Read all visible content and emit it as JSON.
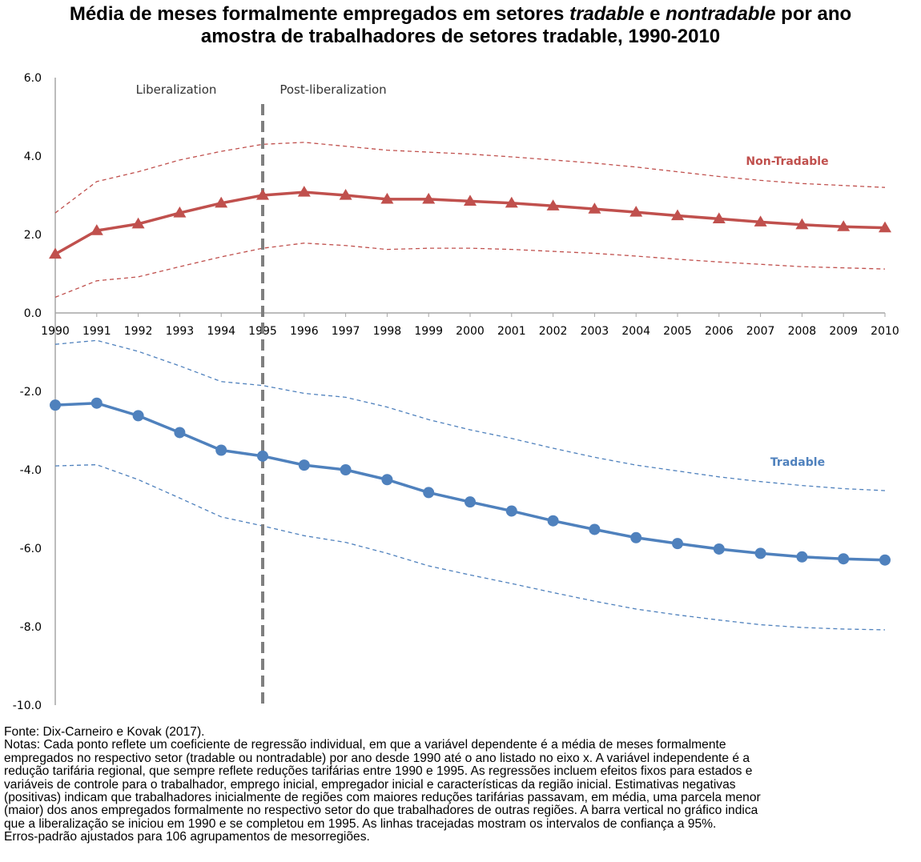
{
  "title": {
    "line1_a": "Média de meses formalmente empregados em setores ",
    "line1_b": "tradable",
    "line1_c": " e ",
    "line1_d": "nontradable",
    "line1_e": " por ano",
    "line2": "amostra de trabalhadores de setores tradable, 1990-2010"
  },
  "chart_data": {
    "type": "line",
    "title": "Média de meses formalmente empregados em setores tradable e nontradable por ano amostra de trabalhadores de setores tradable, 1990-2010",
    "x": [
      1990,
      1991,
      1992,
      1993,
      1994,
      1995,
      1996,
      1997,
      1998,
      1999,
      2000,
      2001,
      2002,
      2003,
      2004,
      2005,
      2006,
      2007,
      2008,
      2009,
      2010
    ],
    "ylim": [
      -10,
      6
    ],
    "yticks": [
      6,
      4,
      2,
      0,
      -2,
      -4,
      -6,
      -8,
      -10
    ],
    "ytick_labels": [
      "6.0",
      "4.0",
      "2.0",
      "0.0",
      "-2.0",
      "-4.0",
      "-6.0",
      "-8.0",
      "-10.0"
    ],
    "xtick_labels": [
      "1990",
      "1991",
      "1992",
      "1993",
      "1994",
      "1995",
      "1996",
      "1997",
      "1998",
      "1999",
      "2000",
      "2001",
      "2002",
      "2003",
      "2004",
      "2005",
      "2006",
      "2007",
      "2008",
      "2009",
      "2010"
    ],
    "grid": false,
    "series": [
      {
        "name": "Non-Tradable",
        "color": "#c0504d",
        "marker": "triangle",
        "values": [
          1.5,
          2.1,
          2.27,
          2.55,
          2.8,
          3.0,
          3.08,
          3.0,
          2.9,
          2.9,
          2.85,
          2.8,
          2.73,
          2.65,
          2.57,
          2.48,
          2.4,
          2.32,
          2.25,
          2.2,
          2.17
        ],
        "ci_upper": [
          2.55,
          3.35,
          3.6,
          3.9,
          4.12,
          4.3,
          4.35,
          4.25,
          4.15,
          4.1,
          4.05,
          3.98,
          3.9,
          3.82,
          3.72,
          3.6,
          3.48,
          3.38,
          3.3,
          3.25,
          3.2
        ],
        "ci_lower": [
          0.4,
          0.82,
          0.92,
          1.18,
          1.43,
          1.65,
          1.78,
          1.72,
          1.62,
          1.65,
          1.65,
          1.62,
          1.57,
          1.52,
          1.45,
          1.37,
          1.3,
          1.24,
          1.18,
          1.15,
          1.12
        ]
      },
      {
        "name": "Tradable",
        "color": "#4f81bd",
        "marker": "circle",
        "values": [
          -2.35,
          -2.3,
          -2.62,
          -3.05,
          -3.5,
          -3.65,
          -3.88,
          -4.0,
          -4.25,
          -4.58,
          -4.82,
          -5.05,
          -5.3,
          -5.52,
          -5.73,
          -5.88,
          -6.02,
          -6.13,
          -6.22,
          -6.27,
          -6.3
        ],
        "ci_upper": [
          -0.8,
          -0.7,
          -0.98,
          -1.35,
          -1.75,
          -1.85,
          -2.05,
          -2.15,
          -2.4,
          -2.72,
          -2.98,
          -3.2,
          -3.45,
          -3.68,
          -3.88,
          -4.03,
          -4.18,
          -4.3,
          -4.4,
          -4.48,
          -4.53
        ],
        "ci_lower": [
          -3.9,
          -3.87,
          -4.25,
          -4.72,
          -5.2,
          -5.43,
          -5.68,
          -5.85,
          -6.13,
          -6.45,
          -6.68,
          -6.9,
          -7.13,
          -7.35,
          -7.55,
          -7.7,
          -7.83,
          -7.95,
          -8.02,
          -8.06,
          -8.08
        ]
      }
    ],
    "vertical_marker_x": 1995,
    "annotations": {
      "liberalization": "Liberalization",
      "post_liberalization": "Post-liberalization"
    }
  },
  "notes": {
    "source": "Fonte: Dix-Carneiro e Kovak (2017).",
    "notes_line1": "Notas: Cada ponto reflete um coeficiente de regressão individual, em que a variável dependente é a média de meses formalmente",
    "notes_line2": "empregados no respectivo setor (tradable ou nontradable) por ano desde 1990 até o ano listado no eixo x. A variável independente é a",
    "notes_line3": "redução tarifária regional, que sempre reflete reduções tarifárias entre 1990 e 1995. As regressões incluem efeitos fixos para estados e",
    "notes_line4": "variáveis de controle para o trabalhador, emprego inicial, empregador inicial e características da região inicial. Estimativas negativas",
    "notes_line5": "(positivas) indicam que trabalhadores inicialmente de regiões com maiores reduções tarifárias passavam, em média, uma parcela menor",
    "notes_line6": "(maior) dos anos empregados formalmente no respectivo setor do que trabalhadores de outras regiões. A barra vertical no gráfico indica",
    "notes_line7": "que a liberalização se iniciou em 1990 e se completou em 1995. As linhas tracejadas mostram os intervalos de confiança a 95%.",
    "notes_line8": "Erros-padrão ajustados para 106 agrupamentos de mesorregiões."
  }
}
